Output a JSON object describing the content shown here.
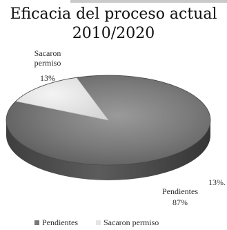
{
  "chart_data": {
    "type": "pie",
    "title": "Eficacia del proceso actual",
    "subtitle": "2010/2020",
    "categories": [
      "Pendientes",
      "Sacaron permiso"
    ],
    "values": [
      87,
      13
    ],
    "value_labels": [
      "87%",
      "13%"
    ],
    "stray_label": "13%.",
    "legend_position": "bottom",
    "colors": {
      "Pendientes": "#767676",
      "Sacaron permiso": "#e4e4e4"
    },
    "three_d": true
  }
}
